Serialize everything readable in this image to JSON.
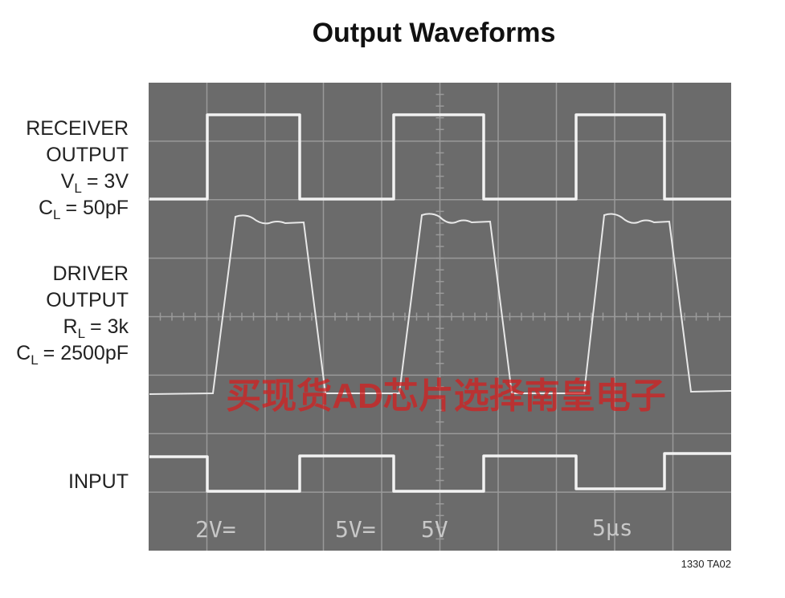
{
  "title": "Output Waveforms",
  "labels": [
    {
      "lines": [
        "RECEIVER",
        "OUTPUT"
      ],
      "conditions": [
        {
          "symbol": "V",
          "subscript": "L",
          "value": "= 3V"
        },
        {
          "symbol": "C",
          "subscript": "L",
          "value": "= 50pF"
        }
      ]
    },
    {
      "lines": [
        "DRIVER",
        "OUTPUT"
      ],
      "conditions": [
        {
          "symbol": "R",
          "subscript": "L",
          "value": "= 3k"
        },
        {
          "symbol": "C",
          "subscript": "L",
          "value": "= 2500pF"
        }
      ]
    },
    {
      "lines": [
        "INPUT"
      ],
      "conditions": []
    }
  ],
  "readouts": [
    "2V=",
    "5V=",
    "5V",
    "5µs"
  ],
  "watermark": "买现货AD芯片选择南皇电子",
  "figure_id": "1330 TA02"
}
